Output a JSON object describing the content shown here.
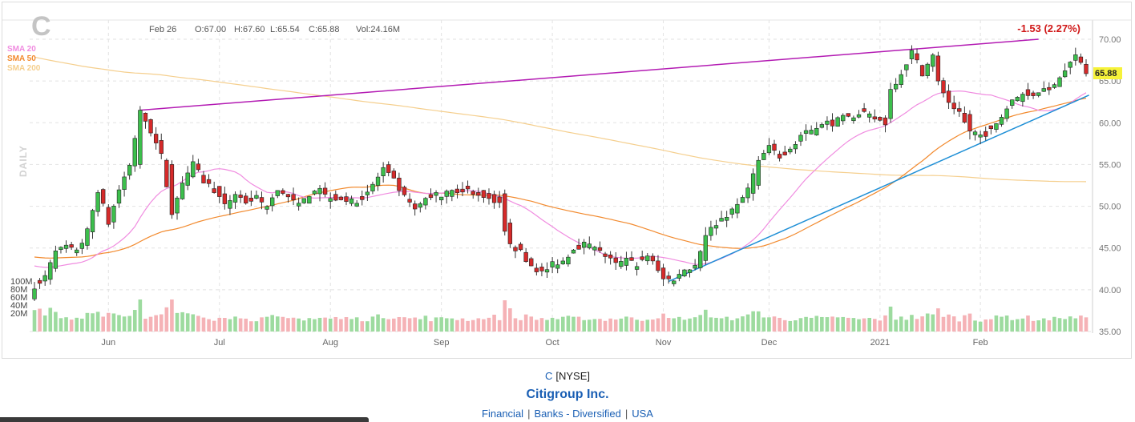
{
  "ticker": "C",
  "exchange": "[NYSE]",
  "company_name": "Citigroup Inc.",
  "sector": [
    "Financial",
    "Banks - Diversified",
    "USA"
  ],
  "header": {
    "date": "Feb 26",
    "open": "O:67.00",
    "high": "H:67.60",
    "low": "L:65.54",
    "close": "C:65.88",
    "volume": "Vol:24.16M",
    "change": "-1.53 (2.27%)",
    "period": "DAILY"
  },
  "colors": {
    "up": "#3cbf4c",
    "down": "#d62a2a",
    "sma20": "#f08ce0",
    "sma50": "#f28a2e",
    "sma200": "#f5cf8e",
    "trend_upper": "#b31bb3",
    "trend_lower": "#1e8fd6",
    "price_tag": "#f6f23a",
    "change": "#d01818"
  },
  "chart_data": {
    "type": "candlestick",
    "symbol": "C",
    "interval": "daily",
    "x_labels": [
      "Jun",
      "Jul",
      "Aug",
      "Sep",
      "Oct",
      "Nov",
      "Dec",
      "2021",
      "Feb"
    ],
    "y_ticks": [
      "35.00",
      "40.00",
      "45.00",
      "50.00",
      "55.00",
      "60.00",
      "65.00",
      "70.00"
    ],
    "ylim": [
      35,
      70
    ],
    "volume_ticks": [
      "20M",
      "40M",
      "60M",
      "80M",
      "100M"
    ],
    "last_price": "65.88",
    "legend": [
      "SMA 20",
      "SMA 50",
      "SMA 200"
    ],
    "grid": true,
    "months": [
      {
        "label": "Jun",
        "start_index": 14
      },
      {
        "label": "Jul",
        "start_index": 35
      },
      {
        "label": "Aug",
        "start_index": 56
      },
      {
        "label": "Sep",
        "start_index": 77
      },
      {
        "label": "Oct",
        "start_index": 98
      },
      {
        "label": "Nov",
        "start_index": 119
      },
      {
        "label": "Dec",
        "start_index": 139
      },
      {
        "label": "2021",
        "start_index": 160
      },
      {
        "label": "Feb",
        "start_index": 179
      }
    ],
    "price_anchors": [
      [
        0,
        40.5
      ],
      [
        2,
        41.5
      ],
      [
        4,
        44.5
      ],
      [
        6,
        45.0
      ],
      [
        8,
        44.5
      ],
      [
        10,
        47.0
      ],
      [
        12,
        52.0
      ],
      [
        14,
        48.0
      ],
      [
        16,
        52.0
      ],
      [
        18,
        55.0
      ],
      [
        20,
        61.5
      ],
      [
        22,
        59.0
      ],
      [
        24,
        56.0
      ],
      [
        26,
        49.0
      ],
      [
        28,
        53.0
      ],
      [
        30,
        55.0
      ],
      [
        32,
        53.0
      ],
      [
        34,
        52.0
      ],
      [
        36,
        50.0
      ],
      [
        38,
        51.5
      ],
      [
        40,
        50.5
      ],
      [
        42,
        51.0
      ],
      [
        44,
        50.0
      ],
      [
        46,
        52.0
      ],
      [
        48,
        51.0
      ],
      [
        50,
        50.0
      ],
      [
        52,
        51.5
      ],
      [
        54,
        52.0
      ],
      [
        56,
        51.0
      ],
      [
        58,
        51.0
      ],
      [
        60,
        50.5
      ],
      [
        62,
        51.0
      ],
      [
        64,
        52.5
      ],
      [
        66,
        54.5
      ],
      [
        68,
        53.0
      ],
      [
        70,
        51.0
      ],
      [
        72,
        49.5
      ],
      [
        74,
        51.0
      ],
      [
        76,
        51.5
      ],
      [
        78,
        51.5
      ],
      [
        80,
        52.0
      ],
      [
        82,
        52.0
      ],
      [
        84,
        51.5
      ],
      [
        86,
        51.0
      ],
      [
        88,
        50.5
      ],
      [
        89,
        47.0
      ],
      [
        90,
        45.5
      ],
      [
        92,
        44.5
      ],
      [
        94,
        43.0
      ],
      [
        96,
        42.0
      ],
      [
        98,
        43.0
      ],
      [
        100,
        43.5
      ],
      [
        102,
        45.0
      ],
      [
        104,
        45.5
      ],
      [
        106,
        45.0
      ],
      [
        108,
        44.0
      ],
      [
        110,
        43.0
      ],
      [
        112,
        43.5
      ],
      [
        114,
        43.0
      ],
      [
        116,
        44.0
      ],
      [
        118,
        42.5
      ],
      [
        119,
        41.5
      ],
      [
        121,
        41.0
      ],
      [
        123,
        42.5
      ],
      [
        125,
        43.0
      ],
      [
        127,
        46.5
      ],
      [
        129,
        48.0
      ],
      [
        131,
        49.0
      ],
      [
        133,
        50.0
      ],
      [
        135,
        52.0
      ],
      [
        137,
        55.5
      ],
      [
        139,
        57.0
      ],
      [
        141,
        56.0
      ],
      [
        143,
        57.0
      ],
      [
        145,
        58.5
      ],
      [
        147,
        59.0
      ],
      [
        149,
        60.0
      ],
      [
        151,
        60.0
      ],
      [
        153,
        60.5
      ],
      [
        155,
        60.5
      ],
      [
        157,
        61.0
      ],
      [
        159,
        60.5
      ],
      [
        161,
        60.0
      ],
      [
        162,
        64.0
      ],
      [
        164,
        66.0
      ],
      [
        166,
        68.5
      ],
      [
        168,
        66.0
      ],
      [
        170,
        68.0
      ],
      [
        171,
        65.0
      ],
      [
        173,
        62.5
      ],
      [
        175,
        61.0
      ],
      [
        177,
        59.0
      ],
      [
        179,
        58.5
      ],
      [
        181,
        59.0
      ],
      [
        183,
        61.0
      ],
      [
        185,
        62.5
      ],
      [
        187,
        63.5
      ],
      [
        189,
        63.5
      ],
      [
        191,
        64.0
      ],
      [
        193,
        64.5
      ],
      [
        195,
        66.5
      ],
      [
        197,
        68.0
      ],
      [
        198,
        67.5
      ],
      [
        199,
        65.88
      ]
    ],
    "big_moves": {
      "20": [
        55.0,
        61.5,
        54.5,
        62.0
      ],
      "26": [
        55.0,
        49.0,
        48.5,
        55.5
      ],
      "89": [
        51.5,
        47.0,
        46.5,
        52.0
      ],
      "90": [
        48.0,
        45.5,
        45.0,
        48.5
      ],
      "127": [
        43.5,
        46.5,
        43.0,
        47.5
      ],
      "137": [
        52.5,
        55.5,
        52.0,
        56.0
      ],
      "162": [
        60.5,
        64.0,
        60.0,
        64.8
      ],
      "171": [
        68.0,
        65.0,
        64.5,
        68.5
      ],
      "177": [
        61.0,
        59.0,
        58.0,
        61.5
      ],
      "199": [
        67.0,
        65.88,
        65.54,
        67.6
      ]
    },
    "trendlines": {
      "upper": [
        [
          20,
          61.5
        ],
        [
          190,
          70.0
        ]
      ],
      "lower": [
        [
          120,
          41.0
        ],
        [
          200,
          63.3
        ]
      ]
    }
  }
}
